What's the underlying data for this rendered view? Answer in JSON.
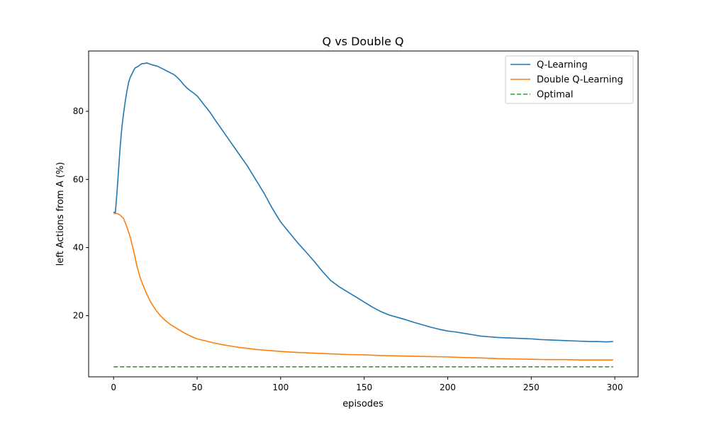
{
  "chart_data": {
    "type": "line",
    "title": "Q vs Double Q",
    "xlabel": "episodes",
    "ylabel": "left Actions from A (%)",
    "xlim": [
      -14.95,
      313.95
    ],
    "ylim": [
      2.05,
      97.7
    ],
    "xticks": [
      0,
      50,
      100,
      150,
      200,
      250,
      300
    ],
    "yticks": [
      20,
      40,
      60,
      80
    ],
    "grid": false,
    "legend_position": "top-right",
    "series": [
      {
        "name": "Q-Learning",
        "color": "#1f77b4",
        "style": "solid",
        "points": [
          [
            0,
            50.5
          ],
          [
            1,
            50
          ],
          [
            2,
            56
          ],
          [
            3,
            63
          ],
          [
            4,
            70
          ],
          [
            5,
            75.5
          ],
          [
            6,
            79.5
          ],
          [
            7,
            83
          ],
          [
            8,
            86
          ],
          [
            9,
            88.5
          ],
          [
            10,
            90
          ],
          [
            11,
            91
          ],
          [
            12,
            92
          ],
          [
            13,
            92.8
          ],
          [
            14,
            93
          ],
          [
            15,
            93.3
          ],
          [
            16,
            93.7
          ],
          [
            17,
            94
          ],
          [
            18,
            94
          ],
          [
            20,
            94.2
          ],
          [
            22,
            93.8
          ],
          [
            24,
            93.5
          ],
          [
            26,
            93.3
          ],
          [
            28,
            92.8
          ],
          [
            30,
            92.3
          ],
          [
            32,
            91.8
          ],
          [
            34,
            91.3
          ],
          [
            36,
            90.8
          ],
          [
            38,
            90
          ],
          [
            40,
            89
          ],
          [
            42,
            87.8
          ],
          [
            44,
            86.8
          ],
          [
            46,
            86
          ],
          [
            48,
            85.3
          ],
          [
            50,
            84.5
          ],
          [
            52,
            83.3
          ],
          [
            54,
            82
          ],
          [
            56,
            80.8
          ],
          [
            58,
            79.5
          ],
          [
            60,
            78
          ],
          [
            65,
            74.5
          ],
          [
            70,
            71
          ],
          [
            75,
            67.5
          ],
          [
            80,
            64
          ],
          [
            85,
            60
          ],
          [
            90,
            56
          ],
          [
            95,
            51.5
          ],
          [
            100,
            47.5
          ],
          [
            105,
            44.5
          ],
          [
            110,
            41.5
          ],
          [
            115,
            38.8
          ],
          [
            120,
            36
          ],
          [
            125,
            33
          ],
          [
            130,
            30.3
          ],
          [
            135,
            28.5
          ],
          [
            140,
            27
          ],
          [
            145,
            25.5
          ],
          [
            150,
            24
          ],
          [
            155,
            22.5
          ],
          [
            160,
            21.2
          ],
          [
            165,
            20.2
          ],
          [
            170,
            19.5
          ],
          [
            175,
            18.8
          ],
          [
            180,
            18
          ],
          [
            185,
            17.3
          ],
          [
            190,
            16.6
          ],
          [
            195,
            16
          ],
          [
            200,
            15.5
          ],
          [
            205,
            15.2
          ],
          [
            210,
            14.8
          ],
          [
            215,
            14.4
          ],
          [
            220,
            14
          ],
          [
            225,
            13.8
          ],
          [
            230,
            13.6
          ],
          [
            235,
            13.5
          ],
          [
            240,
            13.4
          ],
          [
            245,
            13.3
          ],
          [
            250,
            13.2
          ],
          [
            255,
            13
          ],
          [
            260,
            12.9
          ],
          [
            265,
            12.8
          ],
          [
            270,
            12.7
          ],
          [
            275,
            12.6
          ],
          [
            280,
            12.5
          ],
          [
            285,
            12.4
          ],
          [
            290,
            12.4
          ],
          [
            295,
            12.3
          ],
          [
            299,
            12.4
          ]
        ]
      },
      {
        "name": "Double Q-Learning",
        "color": "#ff7f0e",
        "style": "solid",
        "points": [
          [
            0,
            50
          ],
          [
            2,
            50
          ],
          [
            4,
            49.5
          ],
          [
            6,
            48.5
          ],
          [
            8,
            46
          ],
          [
            10,
            43
          ],
          [
            12,
            39
          ],
          [
            14,
            34.5
          ],
          [
            16,
            31
          ],
          [
            18,
            28.5
          ],
          [
            20,
            26.2
          ],
          [
            22,
            24.2
          ],
          [
            24,
            22.6
          ],
          [
            26,
            21.2
          ],
          [
            28,
            20
          ],
          [
            30,
            19
          ],
          [
            32,
            18.2
          ],
          [
            34,
            17.4
          ],
          [
            36,
            16.8
          ],
          [
            38,
            16.2
          ],
          [
            40,
            15.6
          ],
          [
            42,
            15
          ],
          [
            44,
            14.5
          ],
          [
            46,
            14
          ],
          [
            48,
            13.6
          ],
          [
            50,
            13.2
          ],
          [
            55,
            12.6
          ],
          [
            60,
            12
          ],
          [
            65,
            11.5
          ],
          [
            70,
            11.1
          ],
          [
            75,
            10.7
          ],
          [
            80,
            10.4
          ],
          [
            85,
            10.1
          ],
          [
            90,
            9.9
          ],
          [
            95,
            9.7
          ],
          [
            100,
            9.5
          ],
          [
            110,
            9.2
          ],
          [
            120,
            9
          ],
          [
            130,
            8.8
          ],
          [
            140,
            8.6
          ],
          [
            150,
            8.5
          ],
          [
            160,
            8.3
          ],
          [
            170,
            8.2
          ],
          [
            180,
            8.1
          ],
          [
            190,
            8
          ],
          [
            200,
            7.9
          ],
          [
            210,
            7.7
          ],
          [
            220,
            7.6
          ],
          [
            230,
            7.4
          ],
          [
            240,
            7.3
          ],
          [
            250,
            7.2
          ],
          [
            260,
            7.1
          ],
          [
            270,
            7.1
          ],
          [
            280,
            7
          ],
          [
            290,
            7
          ],
          [
            299,
            7
          ]
        ]
      },
      {
        "name": "Optimal",
        "color": "#2ca02c",
        "style": "dashed",
        "points": [
          [
            0,
            5
          ],
          [
            299,
            5
          ]
        ]
      }
    ]
  }
}
